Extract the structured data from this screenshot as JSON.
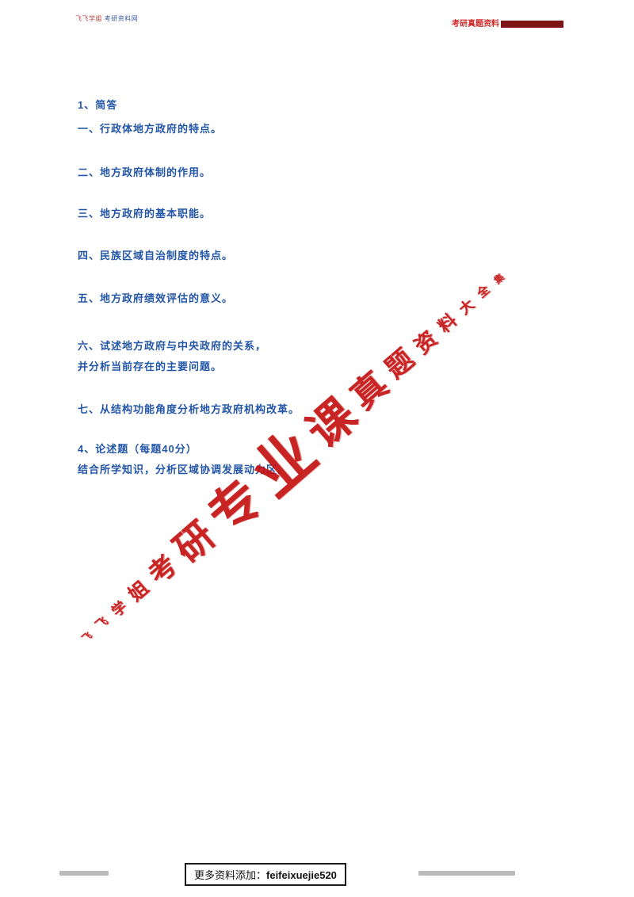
{
  "header": {
    "left_brand_red": "飞飞学姐",
    "left_brand_blue": "考研资料网",
    "right_label": "考研真题资料",
    "bar_color": "#7e1416"
  },
  "body": {
    "text_color": "#2456a8",
    "lines": [
      "1、简答",
      "一、行政体地方政府的特点。",
      "二、地方政府体制的作用。",
      "三、地方政府的基本职能。",
      "四、民族区域自治制度的特点。",
      "五、地方政府绩效评估的意义。",
      "六、试述地方政府与中央政府的关系，",
      "并分析当前存在的主要问题。",
      "七、从结构功能角度分析地方政府机构改革。",
      "4、论述题（每题40分）",
      "结合所学知识，分析区域协调发展动力区。"
    ]
  },
  "watermark": {
    "color": "#c41212",
    "text": "飞飞学姐考研专业课真题资料大全集",
    "chars": [
      "飞",
      "飞",
      "学",
      "姐",
      "考",
      "研",
      "专",
      "业",
      "课",
      "真",
      "题",
      "资",
      "料",
      "大",
      "全",
      "集"
    ]
  },
  "footer": {
    "label": "更多资料添加：",
    "account": "feifeixuejie520"
  }
}
